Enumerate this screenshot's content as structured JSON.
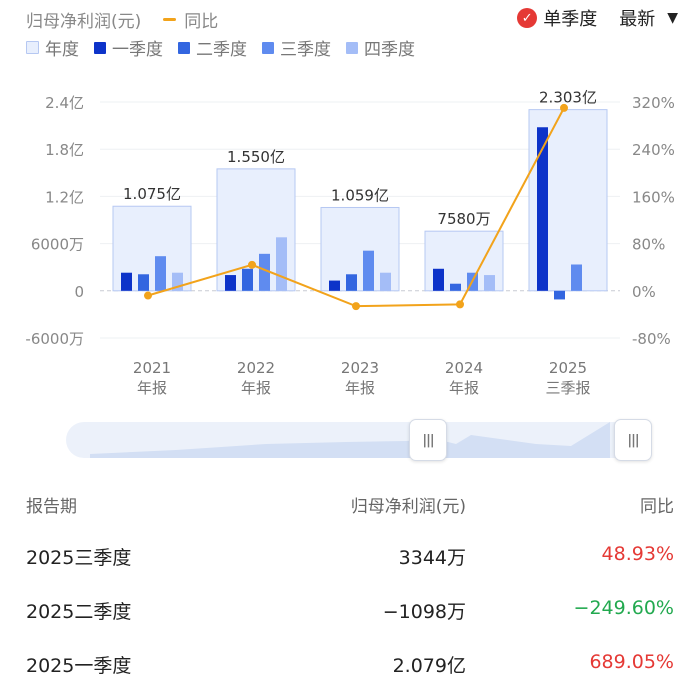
{
  "header": {
    "metric_label": "归母净利润(元)",
    "yoy_label": "同比",
    "single_quarter_label": "单季度",
    "sort_label": "最新"
  },
  "legend": [
    {
      "name": "年度",
      "color": "#e8effd"
    },
    {
      "name": "一季度",
      "color": "#0d33c9"
    },
    {
      "name": "二季度",
      "color": "#3366e0"
    },
    {
      "name": "三季度",
      "color": "#5f8bef"
    },
    {
      "name": "四季度",
      "color": "#a4bdf7"
    }
  ],
  "chart_data": {
    "type": "bar",
    "categories": [
      [
        "2021",
        "年报"
      ],
      [
        "2022",
        "年报"
      ],
      [
        "2023",
        "年报"
      ],
      [
        "2024",
        "年报"
      ],
      [
        "2025",
        "三季报"
      ]
    ],
    "annual": [
      1.075,
      1.55,
      1.059,
      0.758,
      2.303
    ],
    "annual_labels": [
      "1.075亿",
      "1.550亿",
      "1.059亿",
      "7580万",
      "2.303亿"
    ],
    "series": [
      {
        "name": "一季度",
        "values": [
          0.23,
          0.2,
          0.13,
          0.28,
          2.079
        ]
      },
      {
        "name": "二季度",
        "values": [
          0.21,
          0.28,
          0.21,
          0.09,
          -0.1098
        ]
      },
      {
        "name": "三季度",
        "values": [
          0.44,
          0.47,
          0.51,
          0.23,
          0.3344
        ]
      },
      {
        "name": "四季度",
        "values": [
          0.23,
          0.68,
          0.23,
          0.2,
          null
        ]
      }
    ],
    "yoy": {
      "name": "同比",
      "values": [
        -8,
        44,
        -26,
        -23,
        310
      ]
    },
    "left_axis": {
      "ticks": [
        2.4,
        1.8,
        1.2,
        0.6,
        0,
        -0.6
      ],
      "tick_labels": [
        "2.4亿",
        "1.8亿",
        "1.2亿",
        "6000万",
        "0",
        "-6000万"
      ],
      "range": [
        -0.6,
        2.4
      ]
    },
    "right_axis": {
      "ticks": [
        320,
        240,
        160,
        80,
        0,
        -80
      ],
      "tick_labels": [
        "320%",
        "240%",
        "160%",
        "80%",
        "0%",
        "-80%"
      ],
      "range": [
        -80,
        320
      ]
    },
    "colors": {
      "annual_fill": "#e8effd",
      "annual_stroke": "#b6c8f2",
      "yoy_line": "#f2a31b",
      "q1": "#0d33c9",
      "q2": "#3366e0",
      "q3": "#5f8bef",
      "q4": "#a4bdf7"
    }
  },
  "table": {
    "headers": [
      "报告期",
      "归母净利润(元)",
      "同比"
    ],
    "rows": [
      {
        "period": "2025三季度",
        "value": "3344万",
        "yoy": "48.93%",
        "trend": "up"
      },
      {
        "period": "2025二季度",
        "value": "−1098万",
        "yoy": "−249.60%",
        "trend": "down"
      },
      {
        "period": "2025一季度",
        "value": "2.079亿",
        "yoy": "689.05%",
        "trend": "up"
      }
    ]
  }
}
